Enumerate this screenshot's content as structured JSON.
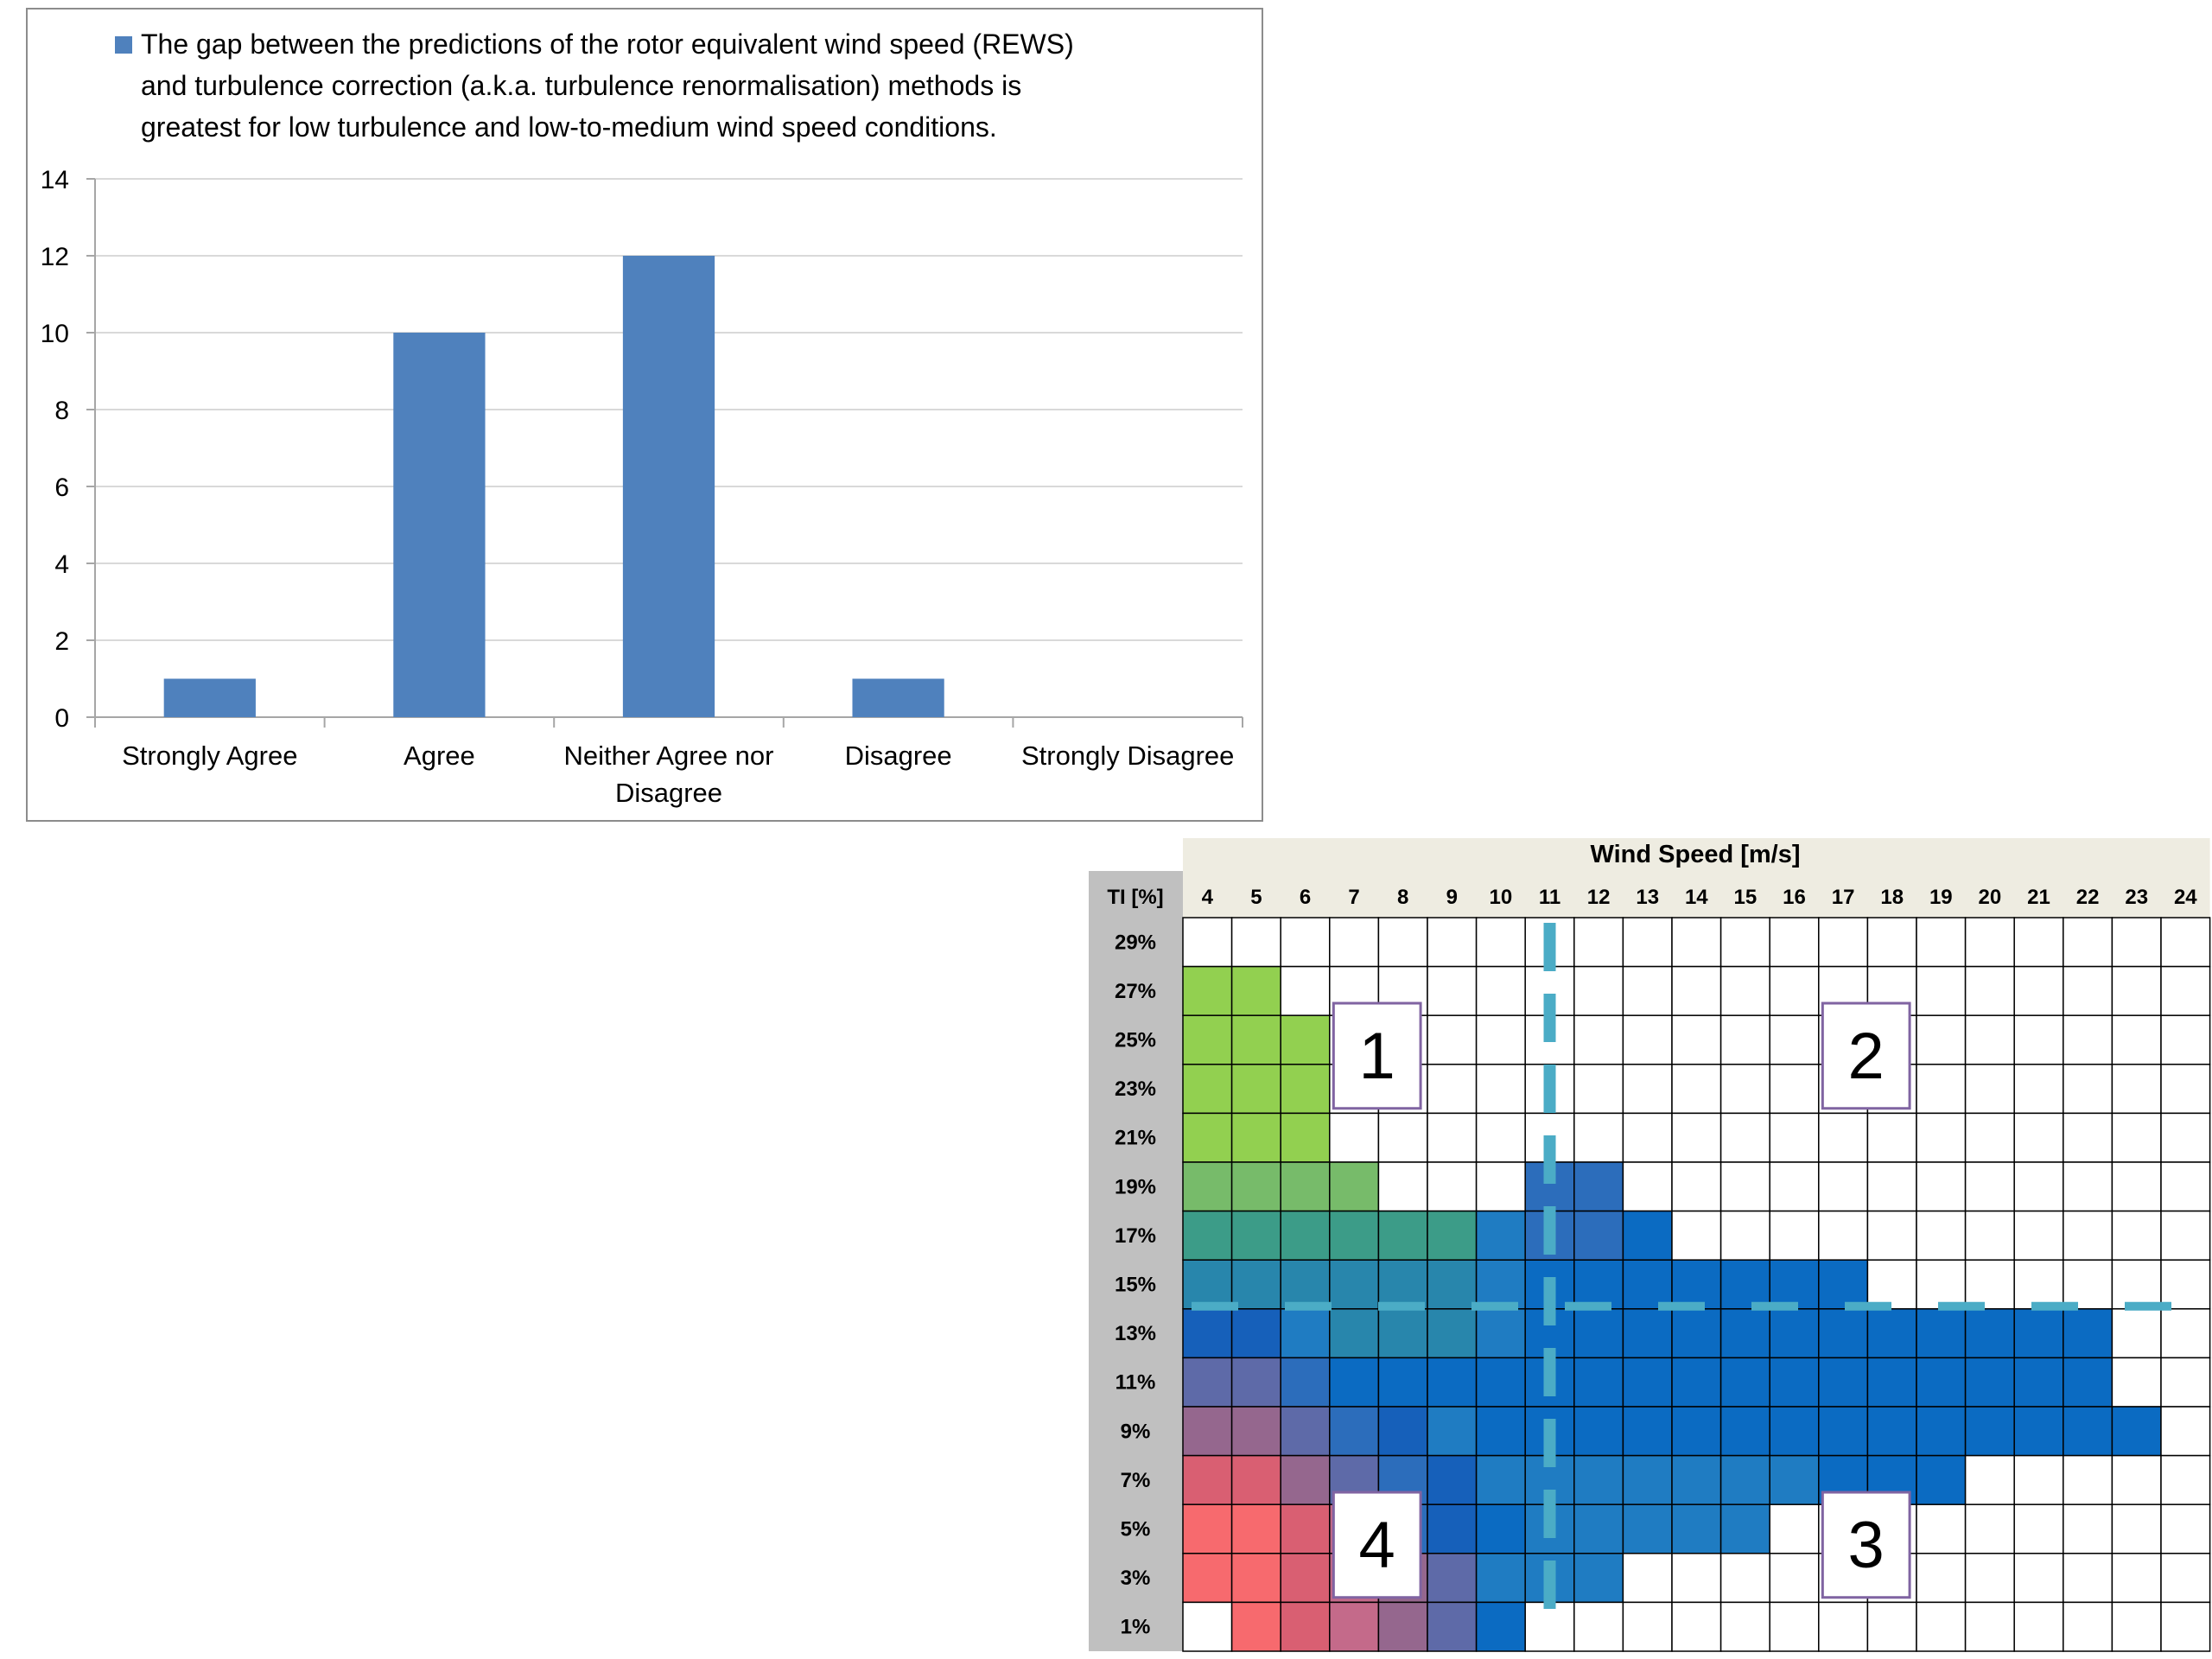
{
  "chart_data": [
    {
      "type": "bar",
      "legend": {
        "lines": [
          "The gap between the predictions of the rotor equivalent wind speed (REWS)",
          "and turbulence correction (a.k.a. turbulence renormalisation) methods is",
          "greatest for low turbulence and low-to-medium wind speed conditions."
        ],
        "placement": "top"
      },
      "categories": [
        [
          "Strongly Agree"
        ],
        [
          "Agree"
        ],
        [
          "Neither Agree nor",
          "Disagree"
        ],
        [
          "Disagree"
        ],
        [
          "Strongly Disagree"
        ]
      ],
      "values": [
        1,
        10,
        12,
        1,
        0
      ],
      "ylim": [
        0,
        14
      ],
      "yticks": [
        0,
        2,
        4,
        6,
        8,
        10,
        12,
        14
      ],
      "grid": true,
      "colors": {
        "bar": "#4f81bd",
        "grid": "#d9d9d9",
        "axis": "#a6a6a6",
        "border": "#8c8c8c"
      }
    },
    {
      "type": "heatmap",
      "title": "Wind Speed [m/s]",
      "row_header": "TI [%]",
      "x_labels": [
        "4",
        "5",
        "6",
        "7",
        "8",
        "9",
        "10",
        "11",
        "12",
        "13",
        "14",
        "15",
        "16",
        "17",
        "18",
        "19",
        "20",
        "21",
        "22",
        "23",
        "24"
      ],
      "y_labels": [
        "29%",
        "27%",
        "25%",
        "23%",
        "21%",
        "19%",
        "17%",
        "15%",
        "13%",
        "11%",
        "9%",
        "7%",
        "5%",
        "3%",
        "1%"
      ],
      "palette": {
        "G": "#92d050",
        "H": "#77bb6a",
        "T": "#3c9c88",
        "U": "#2f91a0",
        "Q": "#2886ac",
        "C": "#1f7cc2",
        "B": "#1660ba",
        "D": "#2c6dbb",
        "E": "#0b6bc2",
        "L": "#5e6aa8",
        "P": "#95678e",
        "R": "#d95f72",
        "S": "#f76a6e",
        "M": "#c46a8a",
        ".": "#ffffff"
      },
      "rows": [
        ".....................",
        "GG...................",
        "GGG..................",
        "GGG..................",
        "GGG..................",
        "HHHH...DD............",
        "TTTTTTCDDE...........",
        "QQQQQQCEEEEEEE.......",
        "BBCQQQCEEEEEEEEEEEE..",
        "LLDEEEEEEEEEEEEEEEE..",
        "PPLDBCEEEEEEEEEEEEEE.",
        "RRPLDBCCCCCCCEEE.....",
        "SSRMDBECCCCC.........",
        "SSRMPLCCC............",
        ".SRMPLE.............."
      ],
      "guides": {
        "dashed_vertical_at": "11",
        "dashed_horizontal_between": [
          "15%",
          "13%"
        ],
        "color": "#4bacc6"
      },
      "region_labels": [
        {
          "text": "1",
          "col": 3,
          "row": 2
        },
        {
          "text": "2",
          "col": 13,
          "row": 2
        },
        {
          "text": "4",
          "col": 3,
          "row": 12
        },
        {
          "text": "3",
          "col": 13,
          "row": 12
        }
      ],
      "colors": {
        "header_bg": "#eeece1",
        "row_header_bg": "#c0c0c0",
        "cell_border": "#000000",
        "label_box": "#8064a2"
      }
    }
  ]
}
